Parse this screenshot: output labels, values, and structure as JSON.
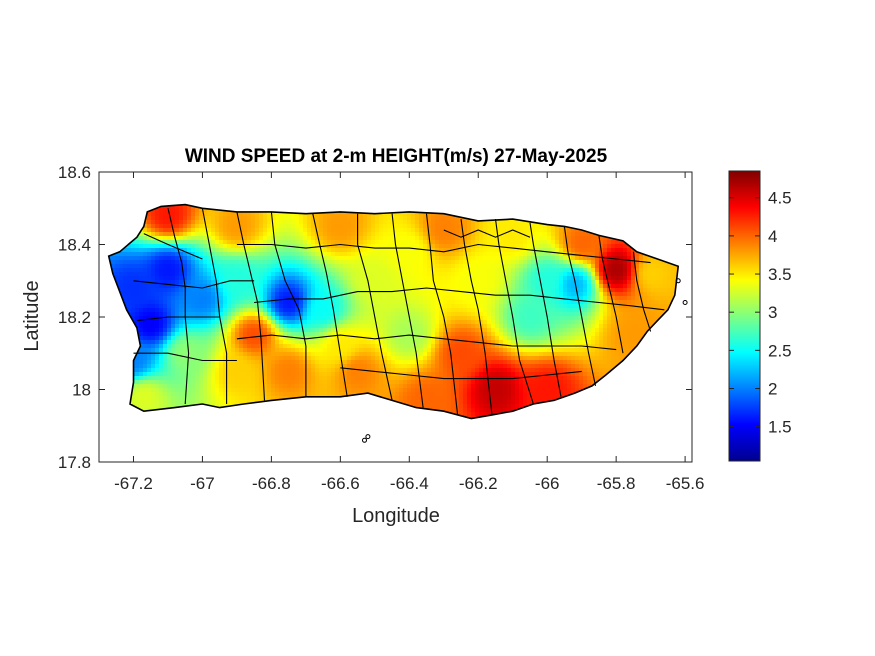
{
  "chart_data": {
    "type": "heatmap",
    "title": "WIND SPEED at 2-m HEIGHT(m/s) 27-May-2025",
    "xlabel": "Longitude",
    "ylabel": "Latitude",
    "xlim": [
      -67.3,
      -65.58
    ],
    "ylim": [
      17.8,
      18.6
    ],
    "xticks": [
      -67.2,
      -67,
      -66.8,
      -66.6,
      -66.4,
      -66.2,
      -66,
      -65.8,
      -65.6
    ],
    "xtick_labels": [
      "-67.2",
      "-67",
      "-66.8",
      "-66.6",
      "-66.4",
      "-66.2",
      "-66",
      "-65.8",
      "-65.6"
    ],
    "yticks": [
      17.8,
      18,
      18.2,
      18.4,
      18.6
    ],
    "ytick_labels": [
      "17.8",
      "18",
      "18.2",
      "18.4",
      "18.6"
    ],
    "colorbar": {
      "colormap": "jet",
      "range": [
        1.05,
        4.85
      ],
      "ticks": [
        1.5,
        2,
        2.5,
        3,
        3.5,
        4,
        4.5
      ],
      "tick_labels": [
        "1.5",
        "2",
        "2.5",
        "3",
        "3.5",
        "4",
        "4.5"
      ]
    },
    "colormap_colors": [
      "#00008f",
      "#0000ff",
      "#0080ff",
      "#00ffff",
      "#80ff80",
      "#ffff00",
      "#ff8000",
      "#ff0000",
      "#800000"
    ],
    "outline_color": "#000000",
    "field_samples": [
      {
        "lon": -67.2,
        "lat": 18.28,
        "v": 1.7
      },
      {
        "lon": -67.1,
        "lat": 18.33,
        "v": 1.6
      },
      {
        "lon": -67.15,
        "lat": 18.18,
        "v": 1.5
      },
      {
        "lon": -67.2,
        "lat": 18.08,
        "v": 2.0
      },
      {
        "lon": -67.0,
        "lat": 18.25,
        "v": 2.0
      },
      {
        "lon": -66.9,
        "lat": 18.3,
        "v": 2.6
      },
      {
        "lon": -66.75,
        "lat": 18.24,
        "v": 1.6
      },
      {
        "lon": -66.65,
        "lat": 18.22,
        "v": 2.5
      },
      {
        "lon": -67.1,
        "lat": 18.48,
        "v": 4.3
      },
      {
        "lon": -66.9,
        "lat": 18.45,
        "v": 3.8
      },
      {
        "lon": -66.6,
        "lat": 18.45,
        "v": 3.8
      },
      {
        "lon": -66.3,
        "lat": 18.44,
        "v": 3.9
      },
      {
        "lon": -66.5,
        "lat": 18.3,
        "v": 3.3
      },
      {
        "lon": -66.4,
        "lat": 18.15,
        "v": 3.1
      },
      {
        "lon": -66.2,
        "lat": 18.3,
        "v": 3.4
      },
      {
        "lon": -66.0,
        "lat": 18.3,
        "v": 2.6
      },
      {
        "lon": -65.92,
        "lat": 18.29,
        "v": 2.2
      },
      {
        "lon": -66.05,
        "lat": 18.2,
        "v": 2.7
      },
      {
        "lon": -65.8,
        "lat": 18.33,
        "v": 4.7
      },
      {
        "lon": -65.9,
        "lat": 18.4,
        "v": 4.0
      },
      {
        "lon": -65.7,
        "lat": 18.32,
        "v": 3.6
      },
      {
        "lon": -65.75,
        "lat": 18.15,
        "v": 3.8
      },
      {
        "lon": -66.15,
        "lat": 18.0,
        "v": 4.6
      },
      {
        "lon": -66.0,
        "lat": 18.0,
        "v": 4.3
      },
      {
        "lon": -66.25,
        "lat": 18.1,
        "v": 4.1
      },
      {
        "lon": -66.75,
        "lat": 18.05,
        "v": 3.9
      },
      {
        "lon": -66.9,
        "lat": 18.05,
        "v": 3.6
      },
      {
        "lon": -66.55,
        "lat": 18.05,
        "v": 3.9
      },
      {
        "lon": -66.35,
        "lat": 17.97,
        "v": 4.0
      },
      {
        "lon": -67.05,
        "lat": 18.1,
        "v": 3.0
      },
      {
        "lon": -67.17,
        "lat": 17.98,
        "v": 3.3
      },
      {
        "lon": -66.85,
        "lat": 18.15,
        "v": 4.1
      },
      {
        "lon": -66.6,
        "lat": 18.12,
        "v": 3.5
      },
      {
        "lon": -66.4,
        "lat": 18.38,
        "v": 3.4
      },
      {
        "lon": -66.1,
        "lat": 18.42,
        "v": 3.5
      }
    ]
  }
}
